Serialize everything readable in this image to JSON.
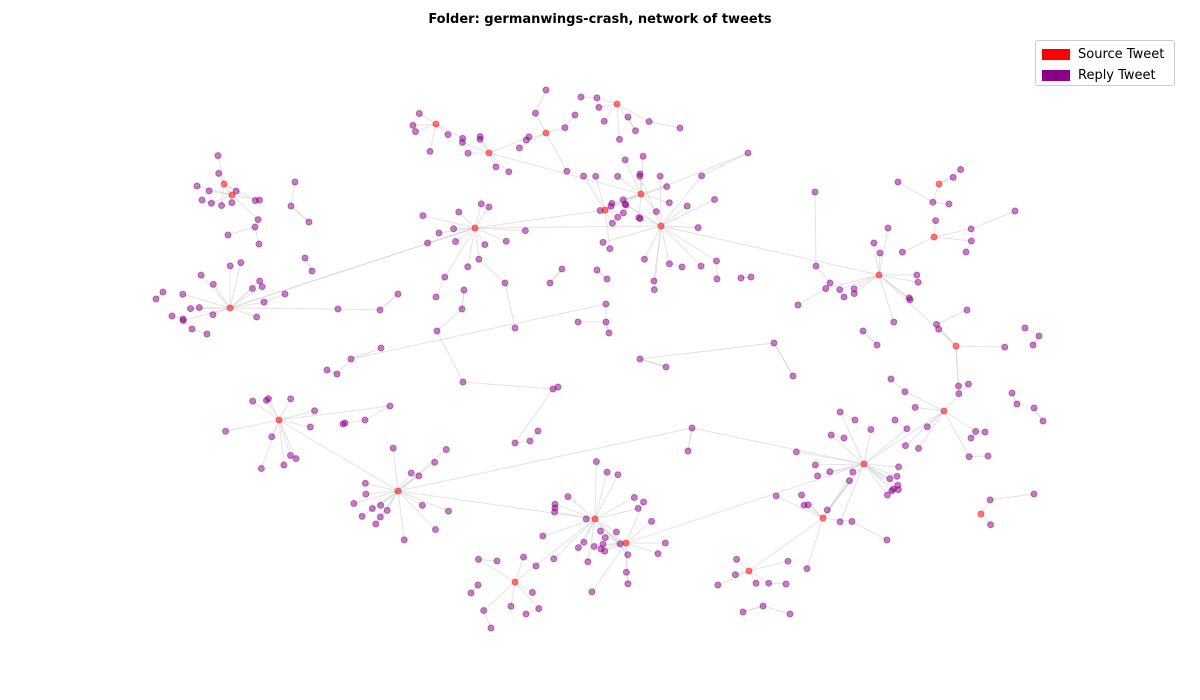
{
  "title": "Folder: germanwings-crash, network of tweets",
  "legend": {
    "source_label": "Source Tweet",
    "reply_label": "Reply Tweet",
    "placement": "top-right"
  },
  "colors": {
    "source": "#ff0000",
    "reply": "#8b008b",
    "edge": "#d0d0d0",
    "node_source_alpha_fill": "#ff6666",
    "node_reply_alpha_fill": "#b266b2"
  },
  "chart_data": {
    "type": "network",
    "title": "Folder: germanwings-crash, network of tweets",
    "categories": [
      "Source Tweet",
      "Reply Tweet"
    ],
    "source_node_count": 20,
    "reply_node_count": 300,
    "axes": "off",
    "grid": false,
    "legend_placement": "top-right"
  }
}
